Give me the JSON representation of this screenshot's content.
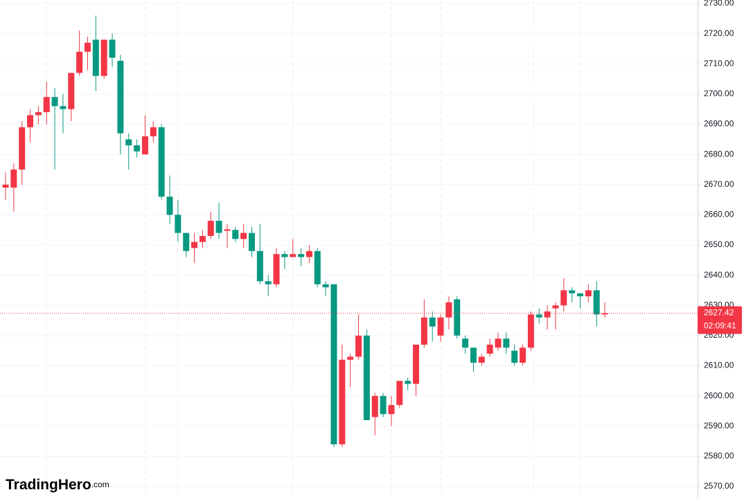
{
  "chart_data": {
    "type": "candlestick",
    "up_color": "#f23645",
    "down_color": "#089981",
    "open": [
      2669,
      2669,
      2675,
      2689,
      2693,
      2694,
      2699,
      2696,
      2695,
      2707,
      2714,
      2718,
      2706,
      2718,
      2711,
      2685,
      2683,
      2680,
      2686,
      2689,
      2666,
      2660,
      2654,
      2649,
      2651,
      2653,
      2658,
      2654.7,
      2655,
      2652,
      2654,
      2648,
      2638,
      2637,
      2647,
      2646,
      2647,
      2646,
      2648,
      2637,
      2637,
      2584,
      2612,
      2613,
      2620,
      2593,
      2600,
      2594,
      2597,
      2605,
      2604,
      2617,
      2626,
      2620,
      2626,
      2632,
      2619,
      2616,
      2611,
      2614,
      2616,
      2619,
      2615,
      2611,
      2616,
      2627,
      2626,
      2629,
      2630,
      2635,
      2634,
      2633,
      2635,
      2627
    ],
    "high": [
      2674,
      2677,
      2691,
      2695,
      2696,
      2704,
      2702,
      2700,
      2707,
      2721,
      2719,
      2726,
      2718,
      2720,
      2713,
      2687,
      2685,
      2693,
      2691,
      2690,
      2673,
      2665,
      2654,
      2654,
      2655,
      2661,
      2664,
      2657,
      2656,
      2657,
      2656,
      2657,
      2640,
      2649,
      2648,
      2652,
      2649,
      2650,
      2649,
      2638,
      2637,
      2617,
      2614,
      2627,
      2622,
      2601,
      2601,
      2600,
      2605,
      2606,
      2617,
      2632,
      2628,
      2627,
      2633,
      2633,
      2620,
      2616,
      2614,
      2619,
      2621,
      2621,
      2617,
      2617,
      2628,
      2629,
      2630,
      2631,
      2639,
      2636,
      2634,
      2637,
      2638,
      2631
    ],
    "low": [
      2665,
      2661,
      2670,
      2684,
      2690,
      2690,
      2675,
      2687,
      2691,
      2706,
      2708,
      2701,
      2705,
      2709,
      2680,
      2675,
      2679,
      2680,
      2684,
      2665,
      2657,
      2651,
      2646,
      2644,
      2649,
      2652,
      2652,
      2649,
      2651,
      2649,
      2646,
      2637,
      2633,
      2636,
      2642,
      2646,
      2643,
      2644,
      2636,
      2633,
      2583,
      2583,
      2603,
      2612,
      2592,
      2587,
      2593,
      2590,
      2596,
      2602,
      2600,
      2616,
      2618,
      2618,
      2622,
      2619,
      2614,
      2608,
      2610,
      2613,
      2615,
      2614,
      2610,
      2610,
      2615,
      2624,
      2622,
      2622,
      2628,
      2631,
      2629,
      2631,
      2623,
      2626
    ],
    "close": [
      2670,
      2675,
      2689,
      2693,
      2694,
      2699,
      2696,
      2695,
      2707,
      2714,
      2717,
      2706,
      2718,
      2712,
      2687,
      2683,
      2681,
      2686,
      2689,
      2666,
      2660,
      2654,
      2648,
      2651,
      2653,
      2658,
      2654,
      2655.2,
      2652,
      2654,
      2648,
      2638,
      2637,
      2647,
      2646,
      2647,
      2646,
      2648,
      2637,
      2636,
      2584,
      2612,
      2613,
      2620,
      2592,
      2600,
      2594,
      2597,
      2605,
      2604,
      2617,
      2626,
      2623,
      2626,
      2631,
      2620,
      2616,
      2611,
      2613,
      2617,
      2619,
      2616,
      2611,
      2616,
      2627,
      2626,
      2628,
      2630,
      2635,
      2634,
      2633,
      2635,
      2627,
      2627.42
    ],
    "ylim": [
      2568.392,
      2730
    ],
    "yticks": [
      {
        "value": 2570,
        "label": "2570.00"
      },
      {
        "value": 2580,
        "label": "2580.00"
      },
      {
        "value": 2590,
        "label": "2590.00"
      },
      {
        "value": 2600,
        "label": "2600.00"
      },
      {
        "value": 2610,
        "label": "2610.00"
      },
      {
        "value": 2620,
        "label": "2620.00"
      },
      {
        "value": 2630,
        "label": "2630.00"
      },
      {
        "value": 2640,
        "label": "2640.00"
      },
      {
        "value": 2650,
        "label": "2650.00"
      },
      {
        "value": 2660,
        "label": "2660.00"
      },
      {
        "value": 2670,
        "label": "2670.00"
      },
      {
        "value": 2680,
        "label": "2680.00"
      },
      {
        "value": 2690,
        "label": "2690.00"
      },
      {
        "value": 2700,
        "label": "2700.00"
      },
      {
        "value": 2710,
        "label": "2710.00"
      },
      {
        "value": 2720,
        "label": "2720.00"
      },
      {
        "value": 2730,
        "label": "2730.00"
      }
    ],
    "grid": true,
    "last_price": 2627.42,
    "countdown": "02:09:41"
  },
  "logo": {
    "name": "TradingHero",
    "suffix": ".com"
  }
}
